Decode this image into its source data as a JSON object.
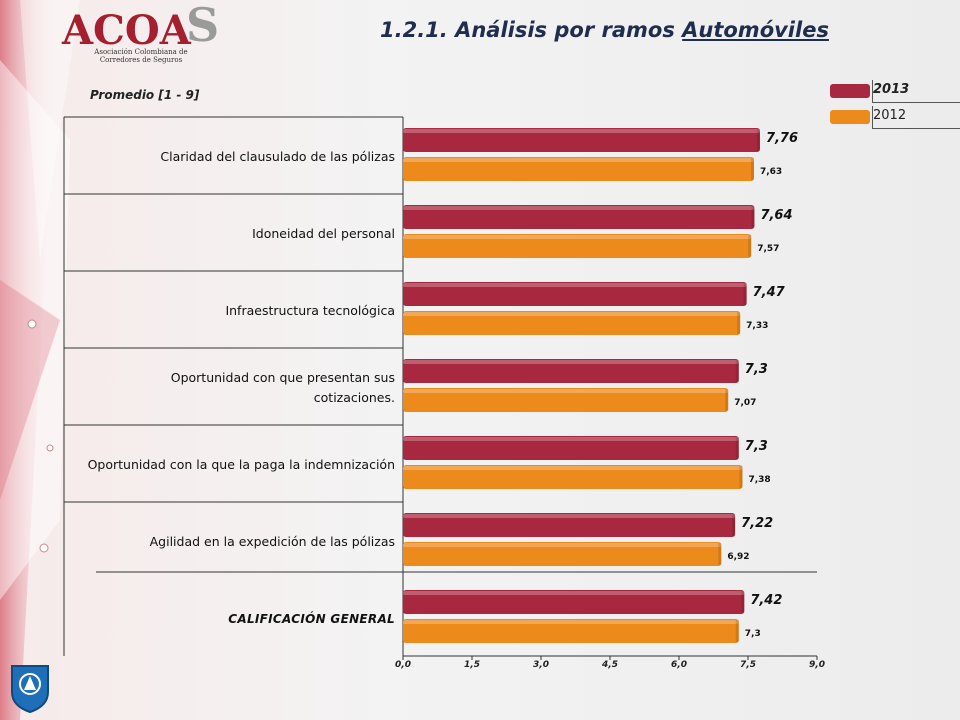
{
  "header": {
    "title_prefix": "1.2.1. Análisis por ramos ",
    "title_underlined": "Automóviles",
    "subtitle": "Promedio  [1 - 9]"
  },
  "logo": {
    "main": "ACOA",
    "s": "S",
    "sub": "Asociación Colombiana de Corredores de Seguros"
  },
  "colors": {
    "series_2013": "#a8283f",
    "series_2012": "#ec8a1c",
    "title": "#1f2d4e"
  },
  "legend": [
    "2013",
    "2012"
  ],
  "chart_data": {
    "type": "bar",
    "orientation": "horizontal",
    "categories": [
      "Claridad del clausulado de las pólizas",
      "Idoneidad del personal",
      "Infraestructura tecnológica",
      "Oportunidad con que presentan sus cotizaciones.",
      "Oportunidad con la que la paga la indemnización",
      "Agilidad en la expedición de las pólizas",
      "CALIFICACIÓN GENERAL"
    ],
    "series": [
      {
        "name": "2013",
        "values": [
          7.76,
          7.64,
          7.47,
          7.3,
          7.3,
          7.22,
          7.42
        ],
        "labels": [
          "7,76",
          "7,64",
          "7,47",
          "7,3",
          "7,3",
          "7,22",
          "7,42"
        ]
      },
      {
        "name": "2012",
        "values": [
          7.63,
          7.57,
          7.33,
          7.07,
          7.38,
          6.92,
          7.3
        ],
        "labels": [
          "7,63",
          "7,57",
          "7,33",
          "7,07",
          "7,38",
          "6,92",
          "7,3"
        ]
      }
    ],
    "xlim": [
      0,
      9
    ],
    "xticks": [
      "0,0",
      "1,5",
      "3,0",
      "4,5",
      "6,0",
      "7,5",
      "9,0"
    ]
  }
}
